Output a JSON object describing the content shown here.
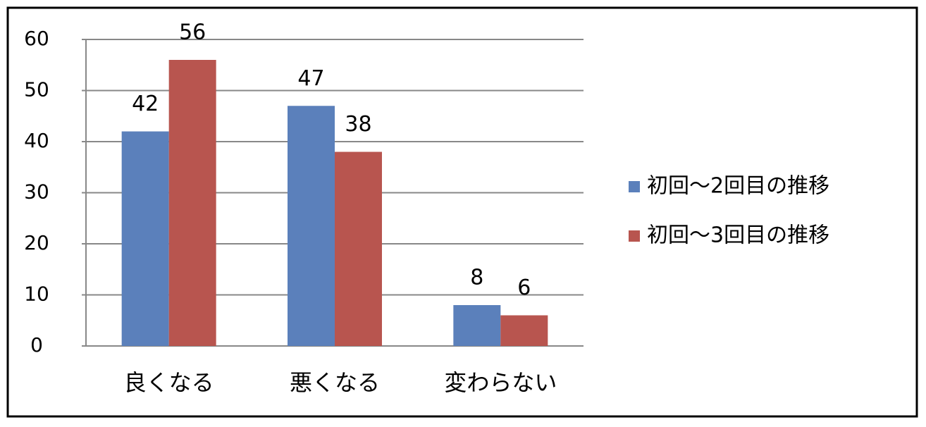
{
  "chart_data": {
    "type": "bar",
    "categories": [
      "良くなる",
      "悪くなる",
      "変わらない"
    ],
    "series": [
      {
        "name": "初回～2回目の推移",
        "color": "#5b80bb",
        "values": [
          42,
          47,
          8
        ]
      },
      {
        "name": "初回～3回目の推移",
        "color": "#b8554f",
        "values": [
          56,
          38,
          6
        ]
      }
    ],
    "ylim": [
      0,
      60
    ],
    "yticks": [
      0,
      10,
      20,
      30,
      40,
      50,
      60
    ],
    "grid": true,
    "legend": "right"
  }
}
